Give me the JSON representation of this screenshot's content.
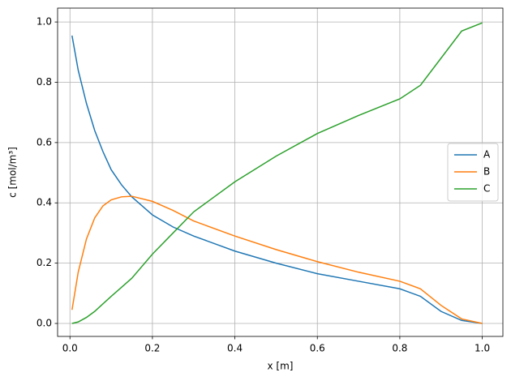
{
  "chart_data": {
    "type": "line",
    "x_label": "x [m]",
    "y_label": "c [mol/m³]",
    "x": [
      0.005,
      0.02,
      0.04,
      0.06,
      0.08,
      0.1,
      0.125,
      0.15,
      0.2,
      0.25,
      0.3,
      0.4,
      0.5,
      0.6,
      0.7,
      0.8,
      0.85,
      0.9,
      0.95,
      1.0
    ],
    "series": [
      {
        "name": "A",
        "color": "#1f77b4",
        "values": [
          0.955,
          0.84,
          0.73,
          0.64,
          0.57,
          0.51,
          0.46,
          0.42,
          0.36,
          0.32,
          0.29,
          0.24,
          0.2,
          0.165,
          0.14,
          0.115,
          0.09,
          0.04,
          0.01,
          0.0
        ]
      },
      {
        "name": "B",
        "color": "#ff7f0e",
        "values": [
          0.045,
          0.17,
          0.28,
          0.35,
          0.39,
          0.41,
          0.42,
          0.422,
          0.405,
          0.375,
          0.34,
          0.29,
          0.245,
          0.205,
          0.17,
          0.14,
          0.115,
          0.06,
          0.015,
          0.0
        ]
      },
      {
        "name": "C",
        "color": "#2ca02c",
        "values": [
          0.0,
          0.005,
          0.02,
          0.04,
          0.065,
          0.09,
          0.12,
          0.15,
          0.23,
          0.3,
          0.37,
          0.47,
          0.555,
          0.63,
          0.69,
          0.745,
          0.79,
          0.88,
          0.97,
          0.997
        ]
      }
    ],
    "xlim": [
      -0.03,
      1.05
    ],
    "ylim": [
      -0.043,
      1.046
    ],
    "xticks": [
      {
        "value": 0,
        "label": "0.0"
      },
      {
        "value": 0.2,
        "label": "0.2"
      },
      {
        "value": 0.4,
        "label": "0.4"
      },
      {
        "value": 0.6,
        "label": "0.6"
      },
      {
        "value": 0.8,
        "label": "0.8"
      },
      {
        "value": 1.0,
        "label": "1.0"
      }
    ],
    "yticks": [
      {
        "value": 0,
        "label": "0.0"
      },
      {
        "value": 0.2,
        "label": "0.2"
      },
      {
        "value": 0.4,
        "label": "0.4"
      },
      {
        "value": 0.6,
        "label": "0.6"
      },
      {
        "value": 0.8,
        "label": "0.8"
      },
      {
        "value": 1.0,
        "label": "1.0"
      }
    ],
    "grid": true,
    "legend": "center right"
  }
}
